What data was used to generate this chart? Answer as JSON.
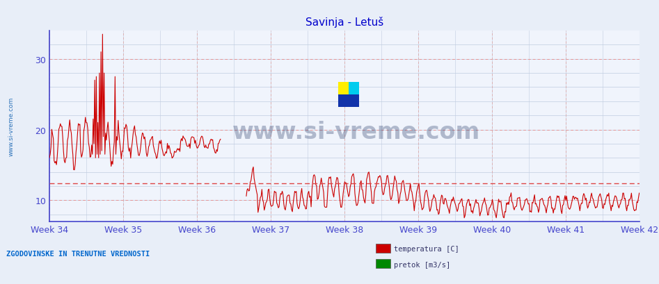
{
  "title": "Savinja - Letuš",
  "title_color": "#0000cc",
  "background_color": "#e8eef8",
  "plot_bg_color": "#f0f4fc",
  "x_tick_labels": [
    "Week 34",
    "Week 35",
    "Week 36",
    "Week 37",
    "Week 38",
    "Week 39",
    "Week 40",
    "Week 41",
    "Week 42"
  ],
  "ylim": [
    7,
    34
  ],
  "y_ticks": [
    10,
    20,
    30
  ],
  "grid_color": "#c0cce0",
  "grid_dashed_color_h": "#e88888",
  "grid_dashed_color_v": "#ddaaaa",
  "watermark_text": "www.si-vreme.com",
  "watermark_color": "#1a3060",
  "left_label": "ZGODOVINSKE IN TRENUTNE VREDNOSTI",
  "left_label_color": "#0066cc",
  "legend_items": [
    "temperatura [C]",
    "pretok [m3/s]"
  ],
  "legend_colors": [
    "#cc0000",
    "#008800"
  ],
  "avg_line_y": 12.4,
  "avg_line_color": "#dd4444",
  "side_label": "www.si-vreme.com",
  "side_label_color": "#0055aa",
  "axis_color": "#4444cc",
  "tick_label_color": "#4444cc"
}
